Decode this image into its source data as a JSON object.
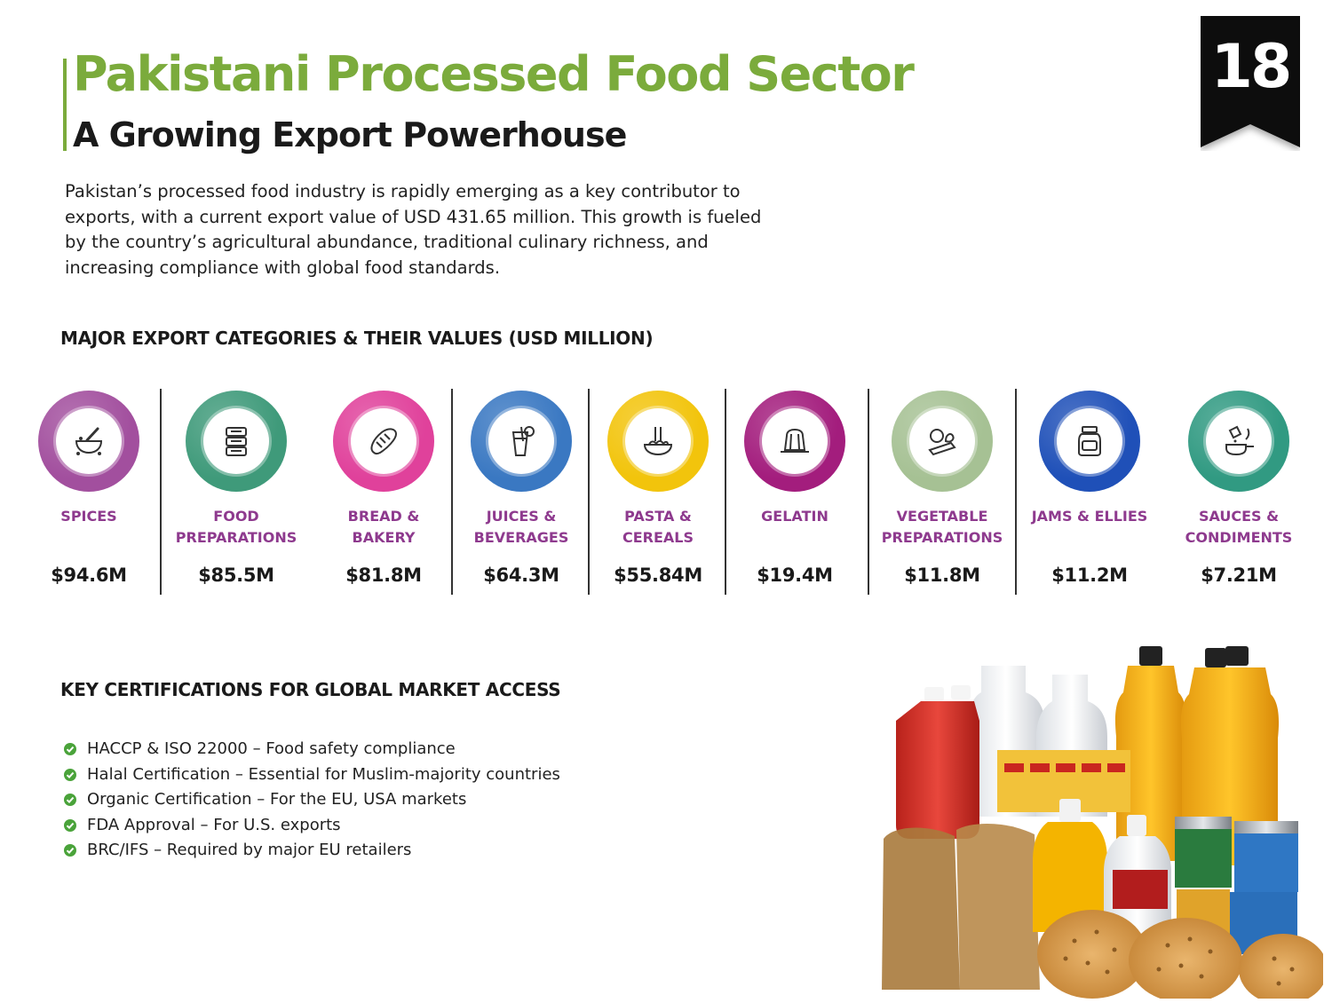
{
  "page": {
    "title": "Pakistani Processed Food Sector",
    "subtitle": "A Growing Export Powerhouse",
    "intro": "Pakistan’s processed food industry is rapidly emerging as a key contributor to exports, with a current export value of USD 431.65 million. This growth is fueled by the country’s agricultural abundance, traditional culinary richness, and increasing compliance with global food standards.",
    "page_number": "18"
  },
  "categories_heading": "MAJOR EXPORT CATEGORIES & THEIR VALUES (USD MILLION)",
  "categories": [
    {
      "label": "SPICES",
      "value": "$94.6M",
      "icon": "mortar-pestle-icon",
      "color": "#a24f9e"
    },
    {
      "label": "FOOD PREPARATIONS",
      "value": "$85.5M",
      "icon": "food-containers-icon",
      "color": "#3f9a7a"
    },
    {
      "label": "BREAD & BAKERY",
      "value": "$81.8M",
      "icon": "bread-icon",
      "color": "#e0419b"
    },
    {
      "label": "JUICES & BEVERAGES",
      "value": "$64.3M",
      "icon": "juice-glass-icon",
      "color": "#3a78c2"
    },
    {
      "label": "PASTA & CEREALS",
      "value": "$55.84M",
      "icon": "pasta-bowl-icon",
      "color": "#f2c40c"
    },
    {
      "label": "GELATIN",
      "value": "$19.4M",
      "icon": "jelly-mold-icon",
      "color": "#a31d7d"
    },
    {
      "label": "VEGETABLE PREPARATIONS",
      "value": "$11.8M",
      "icon": "vegetables-icon",
      "color": "#a6c194"
    },
    {
      "label": "JAMS & ELLIES",
      "value": "$11.2M",
      "icon": "jam-jar-icon",
      "color": "#1f50b8"
    },
    {
      "label": "SAUCES & CONDIMENTS",
      "value": "$7.21M",
      "icon": "sauce-pan-icon",
      "color": "#319a82"
    }
  ],
  "certifications_heading": "KEY CERTIFICATIONS FOR GLOBAL MARKET ACCESS",
  "certifications": [
    "HACCP & ISO 22000 – Food safety compliance",
    "Halal Certification – Essential for Muslim-majority countries",
    "Organic Certification – For the EU, USA markets",
    "FDA Approval – For U.S. exports",
    "BRC/IFS – Required by major EU retailers"
  ],
  "colors": {
    "accent_green": "#7bab3c",
    "label_purple": "#8e3a8e",
    "check_green": "#4aa33a"
  }
}
